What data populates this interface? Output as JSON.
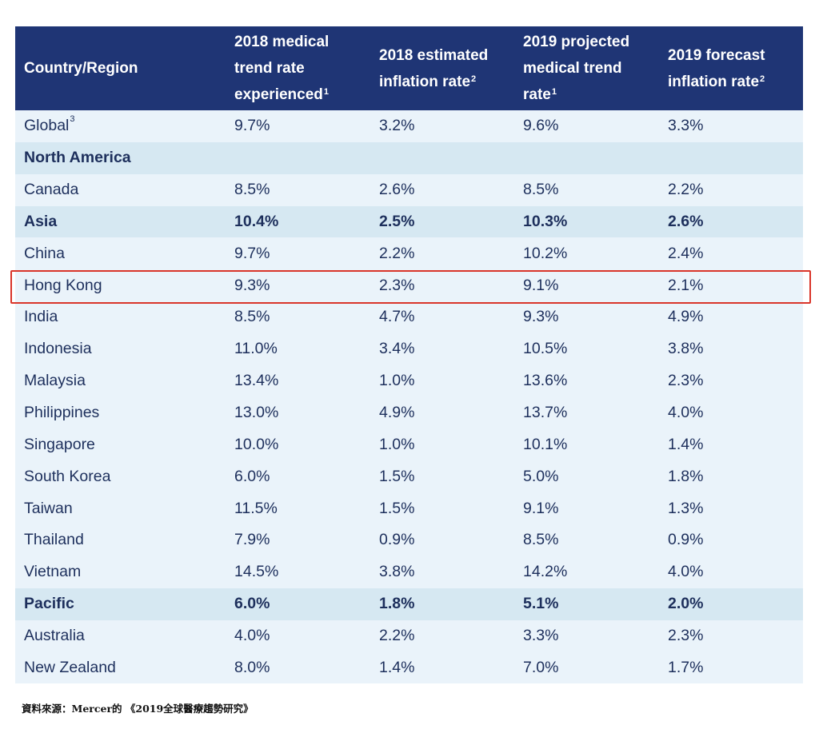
{
  "header": {
    "col0": "Country/Region",
    "col1_line1": "2018 medical",
    "col1_line2": "trend rate",
    "col1_line3": "experienced",
    "col1_sup": "1",
    "col2_line1": "2018 estimated",
    "col2_line2": "inflation rate",
    "col2_sup": "2",
    "col3_line1": "2019 projected",
    "col3_line2": "medical trend",
    "col3_line3": "rate",
    "col3_sup": "1",
    "col4_line1": "2019 forecast",
    "col4_line2": "inflation rate",
    "col4_sup": "2"
  },
  "rows": [
    {
      "name": "Global",
      "sup": "3",
      "v1": "9.7%",
      "v2": "3.2%",
      "v3": "9.6%",
      "v4": "3.3%",
      "style": "light"
    },
    {
      "name": "North America",
      "sup": "",
      "v1": "",
      "v2": "",
      "v3": "",
      "v4": "",
      "style": "group"
    },
    {
      "name": "Canada",
      "sup": "",
      "v1": "8.5%",
      "v2": "2.6%",
      "v3": "8.5%",
      "v4": "2.2%",
      "style": "light"
    },
    {
      "name": "Asia",
      "sup": "",
      "v1": "10.4%",
      "v2": "2.5%",
      "v3": "10.3%",
      "v4": "2.6%",
      "style": "group"
    },
    {
      "name": "China",
      "sup": "",
      "v1": "9.7%",
      "v2": "2.2%",
      "v3": "10.2%",
      "v4": "2.4%",
      "style": "light"
    },
    {
      "name": "Hong Kong",
      "sup": "",
      "v1": "9.3%",
      "v2": "2.3%",
      "v3": "9.1%",
      "v4": "2.1%",
      "style": "light"
    },
    {
      "name": "India",
      "sup": "",
      "v1": "8.5%",
      "v2": "4.7%",
      "v3": "9.3%",
      "v4": "4.9%",
      "style": "light"
    },
    {
      "name": "Indonesia",
      "sup": "",
      "v1": "11.0%",
      "v2": "3.4%",
      "v3": "10.5%",
      "v4": "3.8%",
      "style": "light"
    },
    {
      "name": "Malaysia",
      "sup": "",
      "v1": "13.4%",
      "v2": "1.0%",
      "v3": "13.6%",
      "v4": "2.3%",
      "style": "light"
    },
    {
      "name": "Philippines",
      "sup": "",
      "v1": "13.0%",
      "v2": "4.9%",
      "v3": "13.7%",
      "v4": "4.0%",
      "style": "light"
    },
    {
      "name": "Singapore",
      "sup": "",
      "v1": "10.0%",
      "v2": "1.0%",
      "v3": "10.1%",
      "v4": "1.4%",
      "style": "light"
    },
    {
      "name": "South Korea",
      "sup": "",
      "v1": "6.0%",
      "v2": "1.5%",
      "v3": "5.0%",
      "v4": "1.8%",
      "style": "light"
    },
    {
      "name": "Taiwan",
      "sup": "",
      "v1": "11.5%",
      "v2": "1.5%",
      "v3": "9.1%",
      "v4": "1.3%",
      "style": "light"
    },
    {
      "name": "Thailand",
      "sup": "",
      "v1": "7.9%",
      "v2": "0.9%",
      "v3": "8.5%",
      "v4": "0.9%",
      "style": "light"
    },
    {
      "name": "Vietnam",
      "sup": "",
      "v1": "14.5%",
      "v2": "3.8%",
      "v3": "14.2%",
      "v4": "4.0%",
      "style": "light"
    },
    {
      "name": "Pacific",
      "sup": "",
      "v1": "6.0%",
      "v2": "1.8%",
      "v3": "5.1%",
      "v4": "2.0%",
      "style": "group"
    },
    {
      "name": "Australia",
      "sup": "",
      "v1": "4.0%",
      "v2": "2.2%",
      "v3": "3.3%",
      "v4": "2.3%",
      "style": "light"
    },
    {
      "name": "New Zealand",
      "sup": "",
      "v1": "8.0%",
      "v2": "1.4%",
      "v3": "7.0%",
      "v4": "1.7%",
      "style": "light"
    }
  ],
  "source": "資料來源：Mercer的 《2019全球醫療趨勢研究》",
  "colors": {
    "header_bg": "#1f3575",
    "row_light": "#eaf3fa",
    "row_group": "#d6e8f2",
    "highlight": "#d9352a"
  }
}
